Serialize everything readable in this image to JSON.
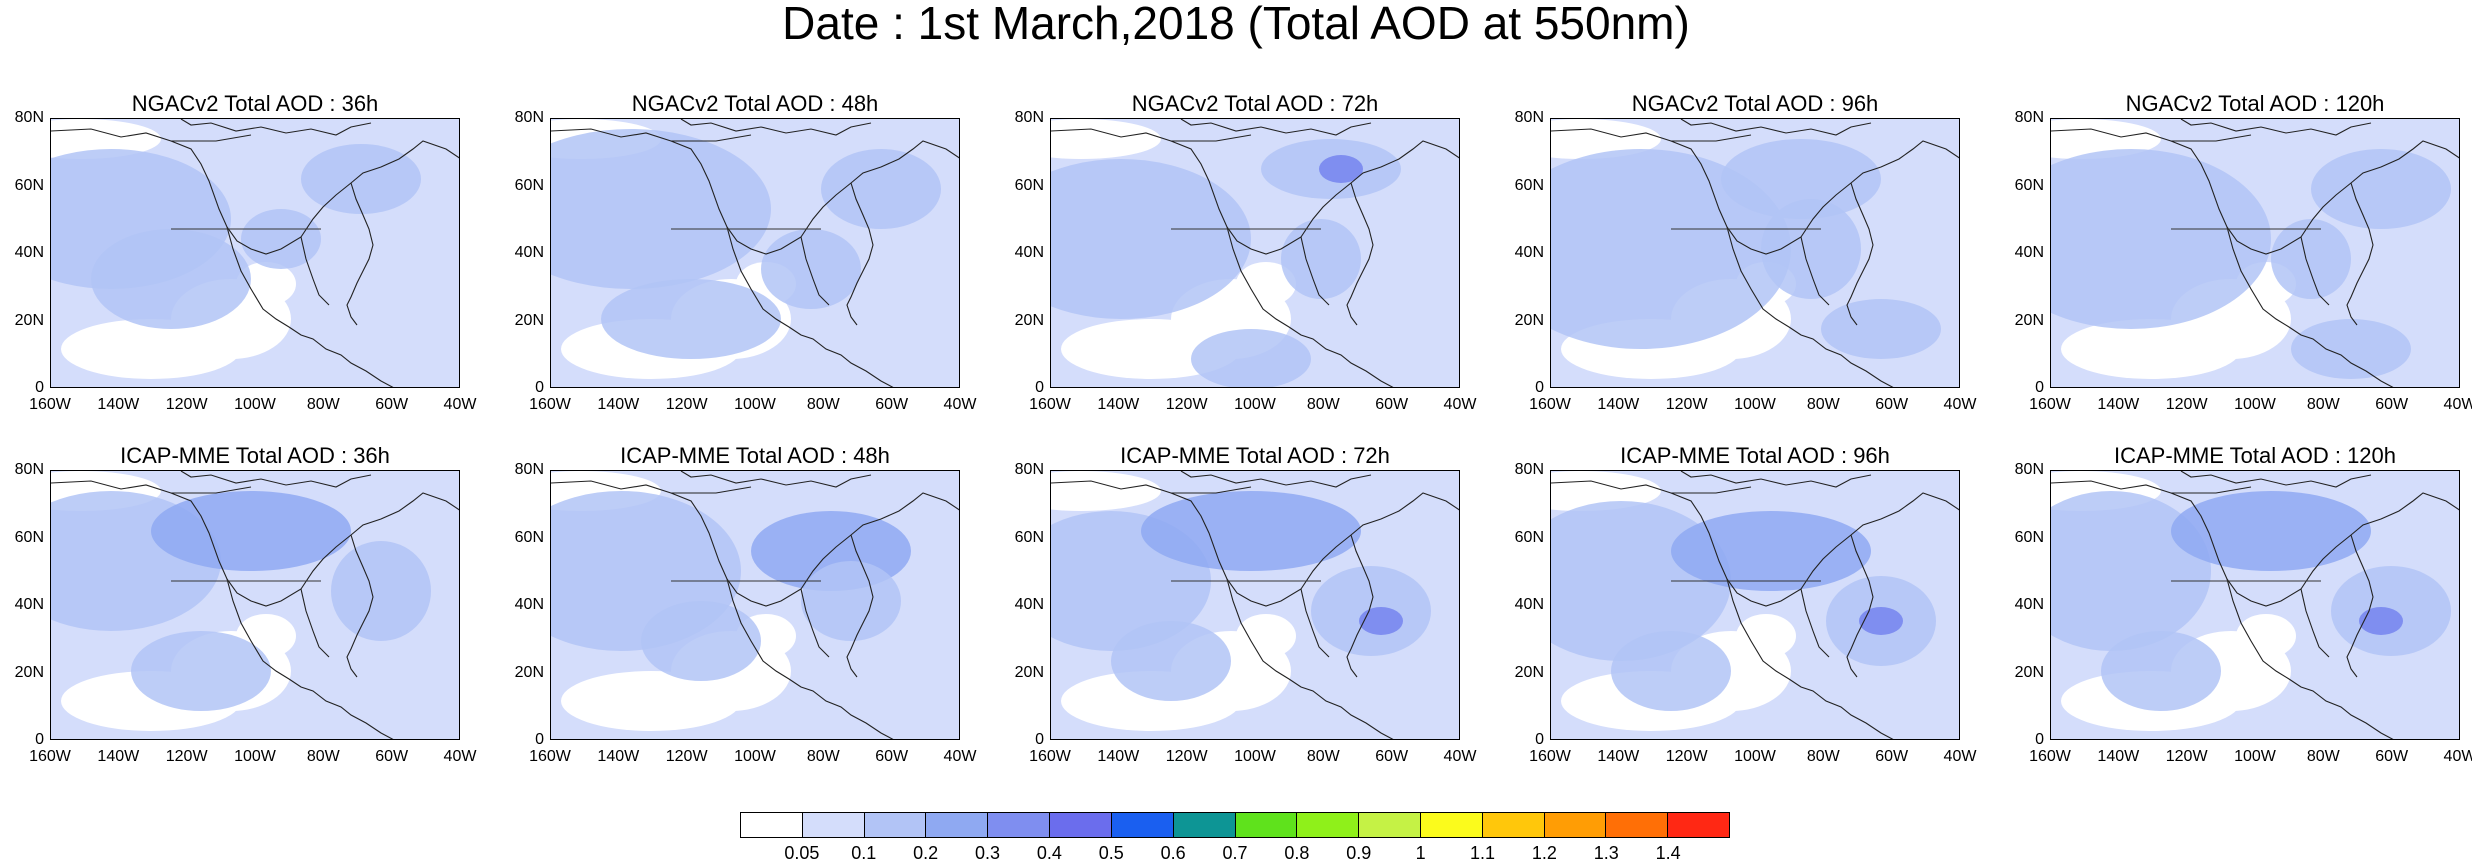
{
  "title": "Date : 1st March,2018 (Total AOD at 550nm)",
  "y_ticks": [
    "80N",
    "60N",
    "40N",
    "20N",
    "0"
  ],
  "x_ticks": [
    "160W",
    "140W",
    "120W",
    "100W",
    "80W",
    "60W",
    "40W"
  ],
  "panels": [
    {
      "title": "NGACv2 Total AOD : 36h",
      "model": "NGACv2",
      "lead_hours": 36
    },
    {
      "title": "NGACv2 Total AOD : 48h",
      "model": "NGACv2",
      "lead_hours": 48
    },
    {
      "title": "NGACv2 Total AOD : 72h",
      "model": "NGACv2",
      "lead_hours": 72
    },
    {
      "title": "NGACv2 Total AOD : 96h",
      "model": "NGACv2",
      "lead_hours": 96
    },
    {
      "title": "NGACv2 Total AOD : 120h",
      "model": "NGACv2",
      "lead_hours": 120
    },
    {
      "title": "ICAP-MME Total AOD : 36h",
      "model": "ICAP-MME",
      "lead_hours": 36
    },
    {
      "title": "ICAP-MME Total AOD : 48h",
      "model": "ICAP-MME",
      "lead_hours": 48
    },
    {
      "title": "ICAP-MME Total AOD : 72h",
      "model": "ICAP-MME",
      "lead_hours": 72
    },
    {
      "title": "ICAP-MME Total AOD : 96h",
      "model": "ICAP-MME",
      "lead_hours": 96
    },
    {
      "title": "ICAP-MME Total AOD : 120h",
      "model": "ICAP-MME",
      "lead_hours": 120
    }
  ],
  "colorbar": {
    "labels": [
      "0.05",
      "0.1",
      "0.2",
      "0.3",
      "0.4",
      "0.5",
      "0.6",
      "0.7",
      "0.8",
      "0.9",
      "1",
      "1.1",
      "1.2",
      "1.3",
      "1.4"
    ],
    "colors": [
      "#ffffff",
      "#d4ddfb",
      "#b2c4f6",
      "#8fa9f2",
      "#7f8ef0",
      "#6b6ded",
      "#1a5ff0",
      "#0d9595",
      "#5fe21c",
      "#8ff01a",
      "#c5f245",
      "#fbfb1c",
      "#ffc70b",
      "#ff9d05",
      "#ff6f06",
      "#ff2814"
    ]
  }
}
